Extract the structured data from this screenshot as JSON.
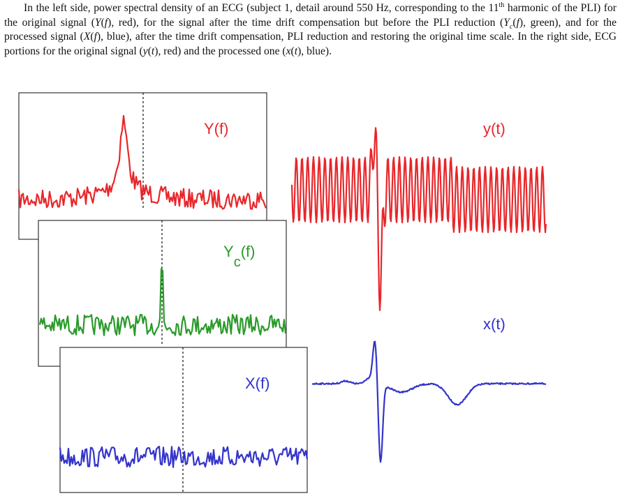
{
  "caption": [
    "In the left side, power spectral density of an ECG (subject 1, detail around 550 Hz, corresponding to the 11",
    "th",
    " harmonic of the PLI) for the original signal (",
    "Y",
    "(",
    "f",
    "), red), for the signal after the time drift compensation but before the PLI reduction (",
    "Y",
    "c",
    "(",
    "f",
    "), green), and for the processed signal (",
    "X",
    "(",
    "f",
    "), blue), after the time drift compensation, PLI reduction and restoring the original time scale. In the right side, ECG portions for the original signal (",
    "y",
    "(",
    "t",
    "), red) and the processed one (",
    "x",
    "(",
    "t",
    "), blue)."
  ],
  "figure": {
    "original_spectrum_label": "Y(f)",
    "compensated_spectrum_label": [
      "Y",
      "c",
      "(f)"
    ],
    "processed_spectrum_label": "X(f)",
    "original_signal_label": "y(t)",
    "processed_signal_label": "x(t)"
  }
}
